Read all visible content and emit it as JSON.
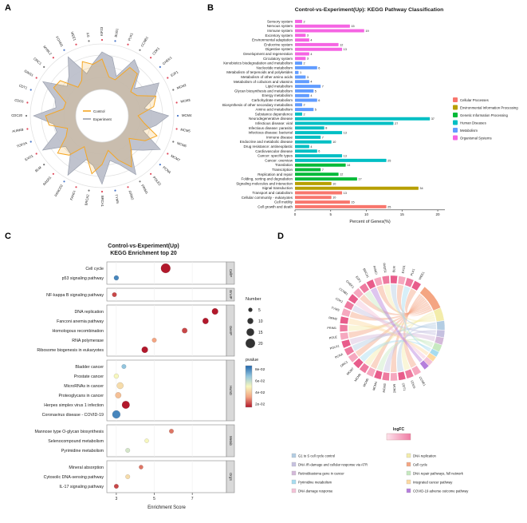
{
  "panels": {
    "a": {
      "letter": "A"
    },
    "b": {
      "letter": "B"
    },
    "c": {
      "letter": "C"
    },
    "d": {
      "letter": "D"
    }
  },
  "chart_data": [
    {
      "type": "radar",
      "panel": "A",
      "legend": [
        {
          "label": "Control",
          "color": "#f5a623"
        },
        {
          "label": "Experiment",
          "color": "#9aa0ae"
        }
      ],
      "genes": [
        "KIF23",
        "BUB1",
        "PLK1",
        "CCNB1",
        "CDK1",
        "CHEK1",
        "E2F1",
        "MCM2",
        "MCM3",
        "MCM4",
        "MCM5",
        "MCM6",
        "MCM7",
        "PCNA",
        "POLE2",
        "PRIM1",
        "RRM2",
        "TYMS",
        "BRCA1",
        "BRCA2",
        "FANCI",
        "FANCD2",
        "RAD51",
        "BLM",
        "EXO1",
        "TOP2A",
        "AURKB",
        "CDC20",
        "CDC6",
        "CDT1",
        "GINS1",
        "ORC1",
        "MYBL2",
        "FOXM1",
        "WEE1",
        "IL6"
      ]
    },
    {
      "type": "bar",
      "panel": "B",
      "title": "Control-vs-Experiment(Up): KEGG Pathway Classification",
      "xlabel": "Percent of Genes(%)",
      "xticks": [
        0,
        5,
        10,
        15,
        20
      ],
      "xlim": [
        0,
        21
      ],
      "groups": [
        {
          "label": "Cellular Processes",
          "color": "#F8766D"
        },
        {
          "label": "Environmental Information Processing",
          "color": "#B79F00"
        },
        {
          "label": "Genetic Information Processing",
          "color": "#00BA38"
        },
        {
          "label": "Human Diseases",
          "color": "#00BFC4"
        },
        {
          "label": "Metabolism",
          "color": "#619CFF"
        },
        {
          "label": "Organismal Systems",
          "color": "#F564E3"
        }
      ],
      "items": [
        {
          "label": "Sensory system",
          "group": "Organismal Systems",
          "pct": 1.0,
          "n": 2
        },
        {
          "label": "Nervous system",
          "group": "Organismal Systems",
          "pct": 7.7,
          "n": 15
        },
        {
          "label": "Immune system",
          "group": "Organismal Systems",
          "pct": 9.7,
          "n": 19
        },
        {
          "label": "Excretory system",
          "group": "Organismal Systems",
          "pct": 1.5,
          "n": 3
        },
        {
          "label": "Environmental adaptation",
          "group": "Organismal Systems",
          "pct": 2.0,
          "n": 4
        },
        {
          "label": "Endocrine system",
          "group": "Organismal Systems",
          "pct": 6.1,
          "n": 12
        },
        {
          "label": "Digestive system",
          "group": "Organismal Systems",
          "pct": 6.6,
          "n": 13
        },
        {
          "label": "Development and regeneration",
          "group": "Organismal Systems",
          "pct": 2.0,
          "n": 4
        },
        {
          "label": "Circulatory system",
          "group": "Organismal Systems",
          "pct": 1.5,
          "n": 3
        },
        {
          "label": "Xenobiotics biodegradation and metabolism",
          "group": "Metabolism",
          "pct": 1.0,
          "n": 2
        },
        {
          "label": "Nucleotide metabolism",
          "group": "Metabolism",
          "pct": 3.1,
          "n": 6
        },
        {
          "label": "Metabolism of terpenoids and polyketides",
          "group": "Metabolism",
          "pct": 0.5,
          "n": 1
        },
        {
          "label": "Metabolism of other amino acids",
          "group": "Metabolism",
          "pct": 1.5,
          "n": 3
        },
        {
          "label": "Metabolism of cofactors and vitamins",
          "group": "Metabolism",
          "pct": 2.0,
          "n": 4
        },
        {
          "label": "Lipid metabolism",
          "group": "Metabolism",
          "pct": 3.6,
          "n": 7
        },
        {
          "label": "Glycan biosynthesis and metabolism",
          "group": "Metabolism",
          "pct": 2.6,
          "n": 5
        },
        {
          "label": "Energy metabolism",
          "group": "Metabolism",
          "pct": 2.0,
          "n": 4
        },
        {
          "label": "Carbohydrate metabolism",
          "group": "Metabolism",
          "pct": 3.1,
          "n": 6
        },
        {
          "label": "Biosynthesis of other secondary metabolites",
          "group": "Metabolism",
          "pct": 1.0,
          "n": 2
        },
        {
          "label": "Amino acid metabolism",
          "group": "Metabolism",
          "pct": 2.6,
          "n": 5
        },
        {
          "label": "Substance dependence",
          "group": "Human Diseases",
          "pct": 1.0,
          "n": 2
        },
        {
          "label": "Neurodegenerative disease",
          "group": "Human Diseases",
          "pct": 18.9,
          "n": 37
        },
        {
          "label": "Infectious disease: viral",
          "group": "Human Diseases",
          "pct": 13.8,
          "n": 27
        },
        {
          "label": "Infectious disease: parasitic",
          "group": "Human Diseases",
          "pct": 4.1,
          "n": 8
        },
        {
          "label": "Infectious disease: bacterial",
          "group": "Human Diseases",
          "pct": 6.6,
          "n": 13
        },
        {
          "label": "Immune disease",
          "group": "Human Diseases",
          "pct": 3.6,
          "n": 7
        },
        {
          "label": "Endocrine and metabolic disease",
          "group": "Human Diseases",
          "pct": 5.1,
          "n": 10
        },
        {
          "label": "Drug resistance: antineoplastic",
          "group": "Human Diseases",
          "pct": 2.0,
          "n": 4
        },
        {
          "label": "Cardiovascular disease",
          "group": "Human Diseases",
          "pct": 3.1,
          "n": 6
        },
        {
          "label": "Cancer: specific types",
          "group": "Human Diseases",
          "pct": 6.6,
          "n": 13
        },
        {
          "label": "Cancer: overview",
          "group": "Human Diseases",
          "pct": 12.8,
          "n": 25
        },
        {
          "label": "Translation",
          "group": "Genetic Information Processing",
          "pct": 7.1,
          "n": 14
        },
        {
          "label": "Transcription",
          "group": "Genetic Information Processing",
          "pct": 3.6,
          "n": 7
        },
        {
          "label": "Replication and repair",
          "group": "Genetic Information Processing",
          "pct": 6.1,
          "n": 12
        },
        {
          "label": "Folding, sorting and degradation",
          "group": "Genetic Information Processing",
          "pct": 8.7,
          "n": 17
        },
        {
          "label": "Signaling molecules and interaction",
          "group": "Environmental Information Processing",
          "pct": 5.1,
          "n": 10
        },
        {
          "label": "Signal transduction",
          "group": "Environmental Information Processing",
          "pct": 17.3,
          "n": 34
        },
        {
          "label": "Transport and catabolism",
          "group": "Cellular Processes",
          "pct": 6.6,
          "n": 13
        },
        {
          "label": "Cellular community - eukaryotes",
          "group": "Cellular Processes",
          "pct": 5.1,
          "n": 10
        },
        {
          "label": "Cell motility",
          "group": "Cellular Processes",
          "pct": 7.7,
          "n": 15
        },
        {
          "label": "Cell growth and death",
          "group": "Cellular Processes",
          "pct": 12.8,
          "n": 25
        }
      ]
    },
    {
      "type": "scatter",
      "panel": "C",
      "title_line1": "Control-vs-Experiment(Up)",
      "title_line2": "KEGG Enrichment top 20",
      "xlabel": "Enrichment Score",
      "xticks": [
        3,
        5,
        7
      ],
      "xlim": [
        2.5,
        8.8
      ],
      "facets": [
        "CellP",
        "EnvIP",
        "GenIP",
        "HumD",
        "Metab",
        "OrgS"
      ],
      "group_sizes": [
        2,
        1,
        5,
        6,
        3,
        3
      ],
      "items": [
        {
          "label": "Cell cycle",
          "score": 5.6,
          "n": 20,
          "p": 0.02
        },
        {
          "label": "p53 signaling pathway",
          "score": 3.0,
          "n": 7,
          "p": 0.075
        },
        {
          "label": "NF-kappa B signaling pathway",
          "score": 2.9,
          "n": 6,
          "p": 0.025
        },
        {
          "label": "DNA replication",
          "score": 8.2,
          "n": 11,
          "p": 0.02
        },
        {
          "label": "Fanconi anemia pathway",
          "score": 7.7,
          "n": 10,
          "p": 0.02
        },
        {
          "label": "Homologous recombination",
          "score": 6.6,
          "n": 8,
          "p": 0.025
        },
        {
          "label": "RNA polymerase",
          "score": 5.0,
          "n": 6,
          "p": 0.035
        },
        {
          "label": "Ribosome biogenesis in eukaryotes",
          "score": 4.5,
          "n": 11,
          "p": 0.02
        },
        {
          "label": "Bladder cancer",
          "score": 3.4,
          "n": 6,
          "p": 0.065
        },
        {
          "label": "Prostate cancer",
          "score": 3.0,
          "n": 7,
          "p": 0.05
        },
        {
          "label": "MicroRNAs in cancer",
          "score": 3.2,
          "n": 12,
          "p": 0.045
        },
        {
          "label": "Proteoglycans in cancer",
          "score": 3.1,
          "n": 10,
          "p": 0.04
        },
        {
          "label": "Herpes simplex virus 1 infection",
          "score": 3.5,
          "n": 15,
          "p": 0.02
        },
        {
          "label": "Coronavirus disease - COVID-19",
          "score": 3.0,
          "n": 16,
          "p": 0.075
        },
        {
          "label": "Mannose type O-glycan biosynthesis",
          "score": 5.9,
          "n": 6,
          "p": 0.03
        },
        {
          "label": "Selenocompound metabolism",
          "score": 4.6,
          "n": 5,
          "p": 0.05
        },
        {
          "label": "Pyrimidine metabolism",
          "score": 3.6,
          "n": 6,
          "p": 0.055
        },
        {
          "label": "Mineral absorption",
          "score": 4.3,
          "n": 5,
          "p": 0.03
        },
        {
          "label": "Cytosolic DNA-sensing pathway",
          "score": 3.6,
          "n": 6,
          "p": 0.045
        },
        {
          "label": "IL-17 signaling pathway",
          "score": 3.0,
          "n": 6,
          "p": 0.025
        }
      ],
      "legend": {
        "number_label": "Number",
        "number_sizes": [
          5,
          10,
          15,
          20
        ],
        "pvalue_label": "pvalue",
        "pvalue_ticks": [
          "8e-02",
          "6e-02",
          "4e-02",
          "2e-02"
        ]
      }
    },
    {
      "type": "chord",
      "panel": "D",
      "logfc_label": "logFC",
      "genes": [
        "CCNE1",
        "CDC6",
        "CDT1",
        "MCM2",
        "MCM3",
        "MCM4",
        "MCM5",
        "MCM6",
        "MCM7",
        "ORC1",
        "PCNA",
        "POLA1",
        "POLE",
        "PRIM1",
        "RRM2",
        "TYMS",
        "CDK1",
        "CCNB1",
        "CHEK1",
        "E2F1",
        "BRCA1",
        "FANCI",
        "RAD51",
        "BLM",
        "EXO1",
        "PLK1",
        "WEE1"
      ],
      "pathways": [
        {
          "label": "G1 to S cell cycle control",
          "color": "#b3cde3"
        },
        {
          "label": "DNA IR-damage and cellular response via ATR",
          "color": "#c6c1e0"
        },
        {
          "label": "Retinoblastoma gene in cancer",
          "color": "#d4b9da"
        },
        {
          "label": "Pyrimidine metabolism",
          "color": "#a6dcef"
        },
        {
          "label": "DNA damage response",
          "color": "#f4c2d7"
        },
        {
          "label": "DNA replication",
          "color": "#f3ecaa"
        },
        {
          "label": "Cell cycle",
          "color": "#f4a582"
        },
        {
          "label": "DNA repair pathways, full network",
          "color": "#c7e9c0"
        },
        {
          "label": "Integrated cancer pathway",
          "color": "#fdd9a0"
        },
        {
          "label": "COVID-19 adverse outcome pathway",
          "color": "#b57edc"
        }
      ]
    }
  ]
}
